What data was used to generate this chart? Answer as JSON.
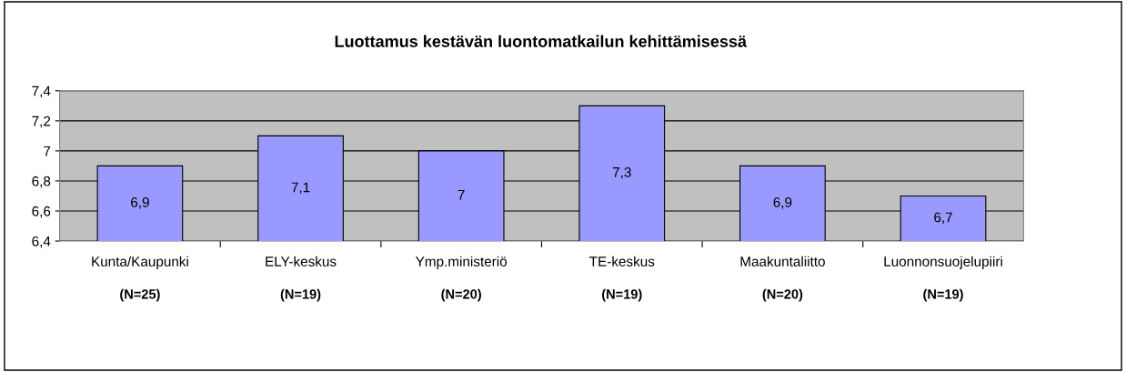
{
  "chart_data": {
    "type": "bar",
    "title": "Luottamus kestävän luontomatkailun kehittämisessä",
    "categories": [
      "Kunta/Kaupunki\n(N=25)",
      "ELY-keskus\n(N=19)",
      "Ymp.ministeriö\n(N=20)",
      "TE-keskus\n(N=19)",
      "Maakuntaliitto\n(N=20)",
      "Luonnonsuojelupiiri\n(N=19)"
    ],
    "values": [
      6.9,
      7.1,
      7.0,
      7.3,
      6.9,
      6.7
    ],
    "value_labels": [
      "6,9",
      "7,1",
      "7",
      "7,3",
      "6,9",
      "6,7"
    ],
    "color": "#9999ff",
    "ylim": [
      6.4,
      7.4
    ],
    "yticks": [
      {
        "value": 6.4,
        "label": "6,4"
      },
      {
        "value": 6.6,
        "label": "6,6"
      },
      {
        "value": 6.8,
        "label": "6,8"
      },
      7,
      {
        "value": 7.2,
        "label": "7,2"
      },
      {
        "value": 7.4,
        "label": "7,4"
      }
    ],
    "grid": "y",
    "legend": false
  }
}
